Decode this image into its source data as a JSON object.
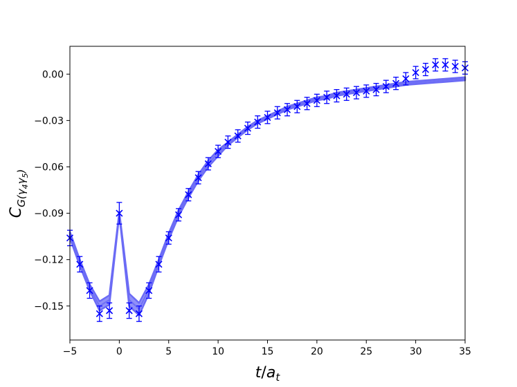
{
  "chart_data": {
    "type": "scatter",
    "title": "",
    "xlabel": "t/a_t",
    "ylabel": "C_{G(γ4γ5)}",
    "xlim": [
      -5,
      35
    ],
    "ylim": [
      -0.172,
      0.018
    ],
    "xticks": [
      -5,
      0,
      5,
      10,
      15,
      20,
      25,
      30,
      35
    ],
    "yticks": [
      0.0,
      -0.03,
      -0.06,
      -0.09,
      -0.12,
      -0.15
    ],
    "xtick_labels": [
      "−5",
      "0",
      "5",
      "10",
      "15",
      "20",
      "25",
      "30",
      "35"
    ],
    "ytick_labels": [
      "0.00",
      "−0.03",
      "−0.06",
      "−0.09",
      "−0.12",
      "−0.15"
    ],
    "grid": false,
    "colors": {
      "points": "#0000ff",
      "fit_band": "#6b6bf5"
    },
    "series": [
      {
        "x": [
          -5,
          -4,
          -3,
          -2,
          -1,
          0,
          1,
          2,
          3,
          4,
          5,
          6,
          7,
          8,
          9,
          10,
          11,
          12,
          13,
          14,
          15,
          16,
          17,
          18,
          19,
          20,
          21,
          22,
          23,
          24,
          25,
          26,
          27,
          28,
          29,
          30,
          31,
          32,
          33,
          34,
          35
        ],
        "y": [
          -0.106,
          -0.123,
          -0.14,
          -0.155,
          -0.153,
          -0.09,
          -0.153,
          -0.155,
          -0.14,
          -0.123,
          -0.106,
          -0.091,
          -0.078,
          -0.067,
          -0.058,
          -0.05,
          -0.044,
          -0.04,
          -0.035,
          -0.031,
          -0.028,
          -0.025,
          -0.023,
          -0.021,
          -0.019,
          -0.017,
          -0.015,
          -0.014,
          -0.013,
          -0.012,
          -0.011,
          -0.01,
          -0.008,
          -0.006,
          -0.003,
          0.001,
          0.003,
          0.006,
          0.006,
          0.005,
          0.004
        ],
        "err": [
          0.005,
          0.005,
          0.005,
          0.005,
          0.005,
          0.007,
          0.005,
          0.005,
          0.005,
          0.005,
          0.004,
          0.004,
          0.004,
          0.004,
          0.004,
          0.004,
          0.004,
          0.004,
          0.004,
          0.004,
          0.004,
          0.004,
          0.004,
          0.004,
          0.004,
          0.004,
          0.004,
          0.004,
          0.004,
          0.004,
          0.004,
          0.004,
          0.004,
          0.004,
          0.004,
          0.004,
          0.004,
          0.004,
          0.004,
          0.004,
          0.004
        ]
      }
    ],
    "fit_band": {
      "x": [
        -5,
        -4,
        -3,
        -2,
        -1,
        0,
        1,
        2,
        3,
        4,
        5,
        6,
        7,
        8,
        9,
        10,
        11,
        12,
        13,
        14,
        15,
        16,
        17,
        18,
        19,
        20,
        21,
        22,
        23,
        24,
        25,
        26,
        27,
        28,
        29,
        30,
        31,
        32,
        33,
        34,
        35
      ],
      "y": [
        -0.104,
        -0.122,
        -0.138,
        -0.15,
        -0.146,
        -0.09,
        -0.146,
        -0.152,
        -0.139,
        -0.122,
        -0.105,
        -0.09,
        -0.078,
        -0.067,
        -0.058,
        -0.051,
        -0.045,
        -0.04,
        -0.035,
        -0.031,
        -0.028,
        -0.025,
        -0.022,
        -0.02,
        -0.018,
        -0.016,
        -0.015,
        -0.013,
        -0.012,
        -0.011,
        -0.01,
        -0.009,
        -0.008,
        -0.007,
        -0.006,
        -0.0055,
        -0.005,
        -0.0045,
        -0.004,
        -0.0035,
        -0.003
      ],
      "halfwidth": [
        0.002,
        0.002,
        0.002,
        0.003,
        0.003,
        0.001,
        0.004,
        0.004,
        0.003,
        0.002,
        0.002,
        0.002,
        0.002,
        0.002,
        0.002,
        0.002,
        0.001,
        0.001,
        0.001,
        0.001,
        0.001,
        0.001,
        0.001,
        0.001,
        0.001,
        0.001,
        0.001,
        0.001,
        0.001,
        0.001,
        0.001,
        0.001,
        0.001,
        0.001,
        0.001,
        0.001,
        0.001,
        0.001,
        0.001,
        0.001,
        0.001
      ]
    }
  }
}
